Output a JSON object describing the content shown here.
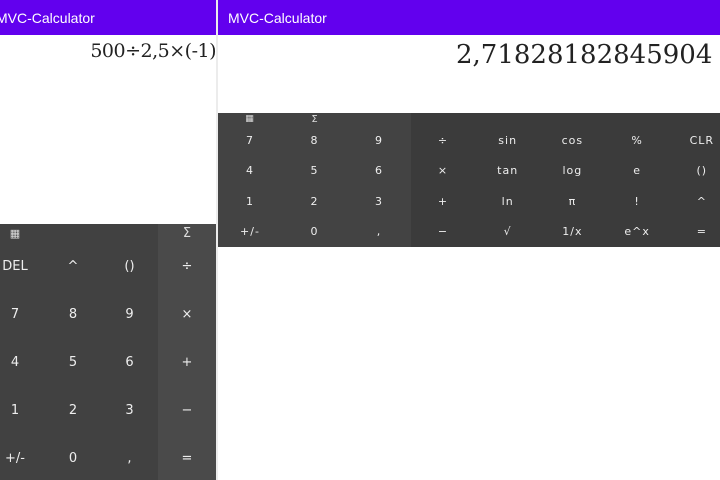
{
  "app_title": "MVC-Calculator",
  "portrait": {
    "expression": "500÷2,5×(-1)",
    "keys": [
      [
        "DEL",
        "^",
        "()",
        "÷"
      ],
      [
        "7",
        "8",
        "9",
        "×"
      ],
      [
        "4",
        "5",
        "6",
        "+"
      ],
      [
        "1",
        "2",
        "3",
        "−"
      ],
      [
        "+/-",
        "0",
        ",",
        "="
      ]
    ]
  },
  "landscape": {
    "result": "2,71828182845904",
    "number_keys": [
      [
        "7",
        "8",
        "9"
      ],
      [
        "4",
        "5",
        "6"
      ],
      [
        "1",
        "2",
        "3"
      ],
      [
        "+/-",
        "0",
        ","
      ]
    ],
    "function_keys": [
      [
        "÷",
        "sin",
        "cos",
        "%",
        "CLR"
      ],
      [
        "×",
        "tan",
        "log",
        "e",
        "()"
      ],
      [
        "+",
        "ln",
        "π",
        "!",
        "^"
      ],
      [
        "−",
        "√",
        "1/x",
        "e^x",
        "="
      ]
    ]
  },
  "icons": {
    "calculator": "▦",
    "sigma": "Σ"
  },
  "colors": {
    "appbar": "#6200ee",
    "keypad": "#414141"
  }
}
